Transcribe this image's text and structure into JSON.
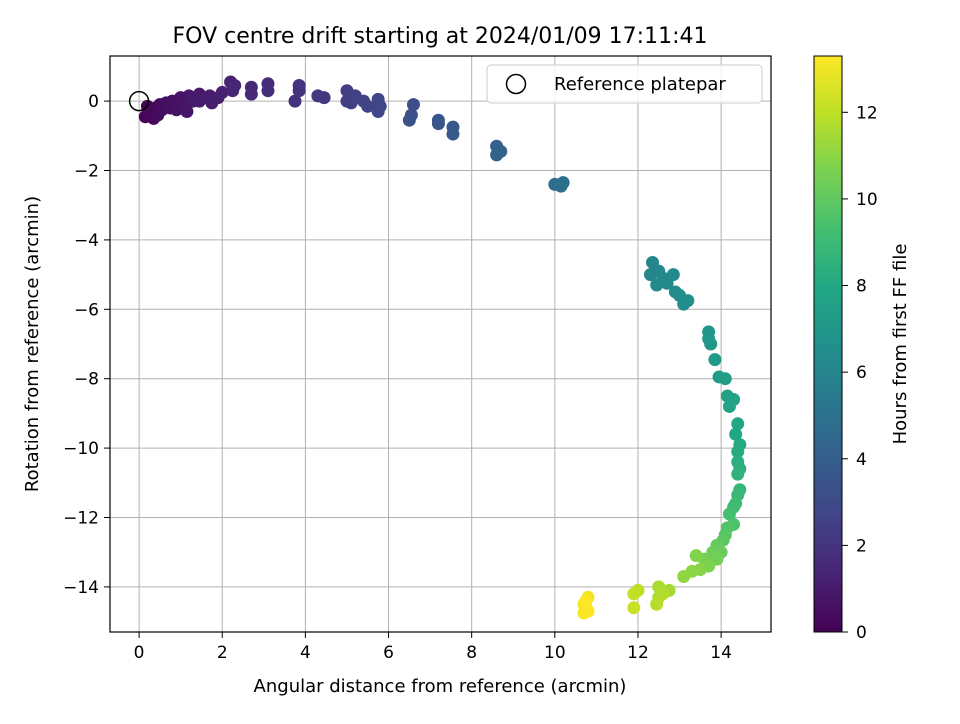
{
  "chart_data": {
    "type": "scatter",
    "title": "FOV centre drift starting at 2024/01/09 17:11:41",
    "xlabel": "Angular distance from reference (arcmin)",
    "ylabel": "Rotation from reference (arcmin)",
    "xlim": [
      -0.7,
      15.2
    ],
    "ylim": [
      -15.3,
      1.3
    ],
    "xticks": [
      0,
      2,
      4,
      6,
      8,
      10,
      12,
      14
    ],
    "yticks": [
      0,
      -2,
      -4,
      -6,
      -8,
      -10,
      -12,
      -14
    ],
    "grid": true,
    "legend": {
      "placement": "top-right",
      "entries": [
        "Reference platepar"
      ]
    },
    "reference_point": {
      "x": 0,
      "y": 0
    },
    "colorbar": {
      "label": "Hours from first FF file",
      "colormap": "viridis",
      "range": [
        0,
        13.3
      ],
      "ticks": [
        0,
        2,
        4,
        6,
        8,
        10,
        12
      ]
    },
    "points": [
      {
        "x": 0.2,
        "y": -0.15,
        "t": 0.05
      },
      {
        "x": 0.3,
        "y": -0.3,
        "t": 0.1
      },
      {
        "x": 0.15,
        "y": -0.45,
        "t": 0.15
      },
      {
        "x": 0.35,
        "y": -0.5,
        "t": 0.2
      },
      {
        "x": 0.25,
        "y": -0.35,
        "t": 0.25
      },
      {
        "x": 0.4,
        "y": -0.2,
        "t": 0.3
      },
      {
        "x": 0.5,
        "y": -0.1,
        "t": 0.35
      },
      {
        "x": 0.45,
        "y": -0.4,
        "t": 0.4
      },
      {
        "x": 0.55,
        "y": -0.25,
        "t": 0.45
      },
      {
        "x": 0.65,
        "y": -0.05,
        "t": 0.5
      },
      {
        "x": 0.75,
        "y": -0.2,
        "t": 0.55
      },
      {
        "x": 0.8,
        "y": 0.0,
        "t": 0.6
      },
      {
        "x": 0.9,
        "y": -0.25,
        "t": 0.65
      },
      {
        "x": 1.0,
        "y": 0.1,
        "t": 0.7
      },
      {
        "x": 1.1,
        "y": -0.1,
        "t": 0.75
      },
      {
        "x": 1.15,
        "y": -0.3,
        "t": 0.8
      },
      {
        "x": 1.2,
        "y": 0.15,
        "t": 0.85
      },
      {
        "x": 1.3,
        "y": 0.0,
        "t": 0.9
      },
      {
        "x": 1.45,
        "y": 0.2,
        "t": 0.95
      },
      {
        "x": 1.45,
        "y": 0.0,
        "t": 1.0
      },
      {
        "x": 1.7,
        "y": 0.15,
        "t": 1.05
      },
      {
        "x": 1.75,
        "y": -0.05,
        "t": 1.1
      },
      {
        "x": 1.9,
        "y": 0.1,
        "t": 1.15
      },
      {
        "x": 2.0,
        "y": 0.25,
        "t": 1.2
      },
      {
        "x": 2.2,
        "y": 0.55,
        "t": 1.3
      },
      {
        "x": 2.25,
        "y": 0.3,
        "t": 1.35
      },
      {
        "x": 2.3,
        "y": 0.45,
        "t": 1.4
      },
      {
        "x": 2.7,
        "y": 0.4,
        "t": 1.5
      },
      {
        "x": 2.7,
        "y": 0.2,
        "t": 1.55
      },
      {
        "x": 3.1,
        "y": 0.5,
        "t": 1.65
      },
      {
        "x": 3.1,
        "y": 0.3,
        "t": 1.7
      },
      {
        "x": 3.75,
        "y": 0.0,
        "t": 1.9
      },
      {
        "x": 3.85,
        "y": 0.45,
        "t": 1.95
      },
      {
        "x": 3.85,
        "y": 0.3,
        "t": 2.0
      },
      {
        "x": 4.3,
        "y": 0.15,
        "t": 2.15
      },
      {
        "x": 4.45,
        "y": 0.1,
        "t": 2.2
      },
      {
        "x": 5.0,
        "y": 0.3,
        "t": 2.4
      },
      {
        "x": 5.0,
        "y": 0.0,
        "t": 2.45
      },
      {
        "x": 5.1,
        "y": -0.05,
        "t": 2.5
      },
      {
        "x": 5.2,
        "y": 0.15,
        "t": 2.55
      },
      {
        "x": 5.4,
        "y": 0.0,
        "t": 2.6
      },
      {
        "x": 5.5,
        "y": -0.15,
        "t": 2.65
      },
      {
        "x": 5.75,
        "y": 0.05,
        "t": 2.75
      },
      {
        "x": 5.8,
        "y": -0.15,
        "t": 2.8
      },
      {
        "x": 5.75,
        "y": -0.3,
        "t": 2.85
      },
      {
        "x": 6.6,
        "y": -0.1,
        "t": 3.15
      },
      {
        "x": 6.55,
        "y": -0.4,
        "t": 3.2
      },
      {
        "x": 6.5,
        "y": -0.55,
        "t": 3.25
      },
      {
        "x": 7.2,
        "y": -0.55,
        "t": 3.5
      },
      {
        "x": 7.2,
        "y": -0.65,
        "t": 3.55
      },
      {
        "x": 7.55,
        "y": -0.75,
        "t": 3.65
      },
      {
        "x": 7.55,
        "y": -0.95,
        "t": 3.7
      },
      {
        "x": 8.6,
        "y": -1.3,
        "t": 4.1
      },
      {
        "x": 8.7,
        "y": -1.45,
        "t": 4.15
      },
      {
        "x": 8.6,
        "y": -1.55,
        "t": 4.2
      },
      {
        "x": 10.0,
        "y": -2.4,
        "t": 4.75
      },
      {
        "x": 10.15,
        "y": -2.45,
        "t": 4.8
      },
      {
        "x": 10.2,
        "y": -2.35,
        "t": 4.85
      },
      {
        "x": 12.35,
        "y": -4.65,
        "t": 6.0
      },
      {
        "x": 12.3,
        "y": -5.0,
        "t": 6.05
      },
      {
        "x": 12.5,
        "y": -4.9,
        "t": 6.1
      },
      {
        "x": 12.6,
        "y": -5.1,
        "t": 6.15
      },
      {
        "x": 12.45,
        "y": -5.3,
        "t": 6.2
      },
      {
        "x": 12.7,
        "y": -5.25,
        "t": 6.25
      },
      {
        "x": 12.85,
        "y": -5.0,
        "t": 6.3
      },
      {
        "x": 12.9,
        "y": -5.5,
        "t": 6.4
      },
      {
        "x": 13.0,
        "y": -5.6,
        "t": 6.45
      },
      {
        "x": 13.1,
        "y": -5.85,
        "t": 6.5
      },
      {
        "x": 13.2,
        "y": -5.75,
        "t": 6.55
      },
      {
        "x": 13.7,
        "y": -6.65,
        "t": 6.9
      },
      {
        "x": 13.7,
        "y": -6.85,
        "t": 6.95
      },
      {
        "x": 13.75,
        "y": -7.0,
        "t": 7.0
      },
      {
        "x": 13.85,
        "y": -7.45,
        "t": 7.15
      },
      {
        "x": 13.95,
        "y": -7.95,
        "t": 7.3
      },
      {
        "x": 14.1,
        "y": -8.0,
        "t": 7.4
      },
      {
        "x": 14.15,
        "y": -8.5,
        "t": 7.55
      },
      {
        "x": 14.3,
        "y": -8.6,
        "t": 7.65
      },
      {
        "x": 14.2,
        "y": -8.8,
        "t": 7.7
      },
      {
        "x": 14.4,
        "y": -9.3,
        "t": 7.85
      },
      {
        "x": 14.35,
        "y": -9.6,
        "t": 7.95
      },
      {
        "x": 14.45,
        "y": -9.9,
        "t": 8.05
      },
      {
        "x": 14.4,
        "y": -10.1,
        "t": 8.15
      },
      {
        "x": 14.4,
        "y": -10.4,
        "t": 8.3
      },
      {
        "x": 14.45,
        "y": -10.6,
        "t": 8.45
      },
      {
        "x": 14.4,
        "y": -10.75,
        "t": 8.55
      },
      {
        "x": 14.45,
        "y": -11.2,
        "t": 8.8
      },
      {
        "x": 14.4,
        "y": -11.35,
        "t": 8.9
      },
      {
        "x": 14.35,
        "y": -11.6,
        "t": 9.05
      },
      {
        "x": 14.3,
        "y": -11.7,
        "t": 9.15
      },
      {
        "x": 14.2,
        "y": -11.9,
        "t": 9.3
      },
      {
        "x": 14.3,
        "y": -12.2,
        "t": 9.5
      },
      {
        "x": 14.15,
        "y": -12.3,
        "t": 9.6
      },
      {
        "x": 14.1,
        "y": -12.5,
        "t": 9.75
      },
      {
        "x": 14.05,
        "y": -12.65,
        "t": 9.9
      },
      {
        "x": 13.9,
        "y": -12.8,
        "t": 10.1
      },
      {
        "x": 14.0,
        "y": -13.0,
        "t": 10.2
      },
      {
        "x": 13.8,
        "y": -13.0,
        "t": 10.35
      },
      {
        "x": 13.9,
        "y": -13.2,
        "t": 10.45
      },
      {
        "x": 13.6,
        "y": -13.2,
        "t": 10.6
      },
      {
        "x": 13.7,
        "y": -13.4,
        "t": 10.7
      },
      {
        "x": 13.4,
        "y": -13.1,
        "t": 10.8
      },
      {
        "x": 13.5,
        "y": -13.5,
        "t": 10.9
      },
      {
        "x": 13.3,
        "y": -13.55,
        "t": 11.0
      },
      {
        "x": 13.1,
        "y": -13.7,
        "t": 11.1
      },
      {
        "x": 12.75,
        "y": -14.1,
        "t": 11.5
      },
      {
        "x": 12.5,
        "y": -14.0,
        "t": 11.6
      },
      {
        "x": 12.5,
        "y": -14.3,
        "t": 11.7
      },
      {
        "x": 12.6,
        "y": -14.2,
        "t": 11.75
      },
      {
        "x": 12.45,
        "y": -14.5,
        "t": 11.85
      },
      {
        "x": 12.0,
        "y": -14.1,
        "t": 12.0
      },
      {
        "x": 11.9,
        "y": -14.2,
        "t": 12.1
      },
      {
        "x": 11.9,
        "y": -14.6,
        "t": 12.2
      },
      {
        "x": 10.8,
        "y": -14.3,
        "t": 13.0
      },
      {
        "x": 10.7,
        "y": -14.5,
        "t": 13.05
      },
      {
        "x": 10.75,
        "y": -14.6,
        "t": 13.1
      },
      {
        "x": 10.7,
        "y": -14.75,
        "t": 13.2
      },
      {
        "x": 10.8,
        "y": -14.7,
        "t": 13.25
      },
      {
        "x": 10.75,
        "y": -14.4,
        "t": 13.3
      }
    ]
  }
}
